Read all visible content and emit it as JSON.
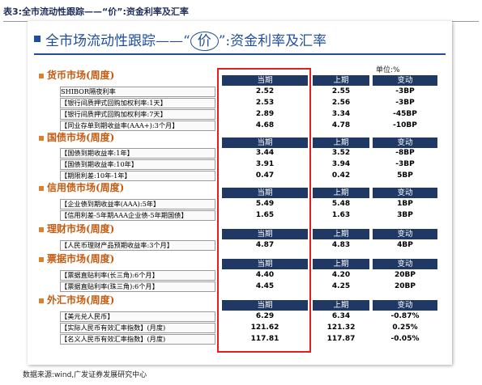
{
  "caption": "表3:全市流动性跟踪——“价”:资金利率及汇率",
  "title": {
    "pre": "全市场流动性跟踪——“",
    "circled": "价",
    "post": "”:资金利率及汇率"
  },
  "unit": "单位:%",
  "headers": {
    "current": "当期",
    "previous": "上期",
    "change": "变动"
  },
  "sections": [
    {
      "title": "货币市场(周度)",
      "rows": [
        {
          "label": "SHIBOR隔夜利率",
          "current": "2.52",
          "previous": "2.55",
          "change": "-3BP"
        },
        {
          "label": "【银行间质押式回购加权利率:1天】",
          "current": "2.53",
          "previous": "2.56",
          "change": "-3BP"
        },
        {
          "label": "【银行间质押式回购加权利率:7天】",
          "current": "2.89",
          "previous": "3.34",
          "change": "-45BP"
        },
        {
          "label": "【同业存单到期收益率(AAA+):3个月】",
          "current": "4.68",
          "previous": "4.78",
          "change": "-10BP"
        }
      ]
    },
    {
      "title": "国债市场(周度)",
      "rows": [
        {
          "label": "【国债到期收益率:1年】",
          "current": "3.44",
          "previous": "3.52",
          "change": "-8BP"
        },
        {
          "label": "【国债到期收益率:10年】",
          "current": "3.91",
          "previous": "3.94",
          "change": "-3BP"
        },
        {
          "label": "【期限利差:10年-1年】",
          "current": "0.47",
          "previous": "0.42",
          "change": "5BP"
        }
      ]
    },
    {
      "title": "信用债市场(周度)",
      "rows": [
        {
          "label": "【企业债到期收益率(AAA):5年】",
          "current": "5.49",
          "previous": "5.48",
          "change": "1BP"
        },
        {
          "label": "【信用利差-5年期AAA企业债-5年期国债】",
          "current": "1.65",
          "previous": "1.63",
          "change": "3BP"
        }
      ]
    },
    {
      "title": "理财市场(周度)",
      "rows": [
        {
          "label": "【人民币理财产品预期收益率:3个月】",
          "current": "4.87",
          "previous": "4.83",
          "change": "4BP"
        }
      ]
    },
    {
      "title": "票据市场(周度)",
      "rows": [
        {
          "label": "【票据直贴利率(长三角):6个月】",
          "current": "4.40",
          "previous": "4.20",
          "change": "20BP"
        },
        {
          "label": "【票据直贴利率(珠三角):6个月】",
          "current": "4.45",
          "previous": "4.25",
          "change": "20BP"
        }
      ]
    },
    {
      "title": "外汇市场(周度)",
      "rows": [
        {
          "label": "【美元兑人民币】",
          "current": "6.29",
          "previous": "6.34",
          "change": "-0.87%"
        },
        {
          "label": "【实际人民币有效汇率指数】(月度)",
          "current": "121.62",
          "previous": "121.32",
          "change": "0.25%"
        },
        {
          "label": "【名义人民币有效汇率指数】(月度)",
          "current": "117.81",
          "previous": "117.87",
          "change": "-0.05%"
        }
      ]
    }
  ],
  "source": "数据来源:wind,广发证券发展研究中心"
}
